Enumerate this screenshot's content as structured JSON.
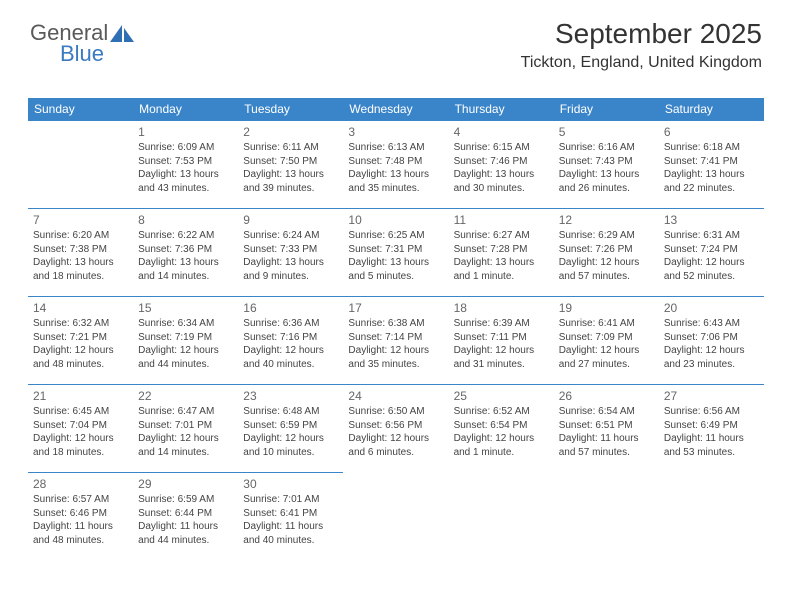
{
  "logo": {
    "text_general": "General",
    "text_blue": "Blue",
    "icon_color": "#2f6fb3"
  },
  "header": {
    "month_title": "September 2025",
    "location": "Tickton, England, United Kingdom"
  },
  "colors": {
    "header_bg": "#3a85c9",
    "header_text": "#ffffff",
    "border": "#3a85c9",
    "text": "#444444",
    "day_number": "#666666"
  },
  "day_headers": [
    "Sunday",
    "Monday",
    "Tuesday",
    "Wednesday",
    "Thursday",
    "Friday",
    "Saturday"
  ],
  "weeks": [
    [
      null,
      {
        "n": "1",
        "sr": "Sunrise: 6:09 AM",
        "ss": "Sunset: 7:53 PM",
        "dl": "Daylight: 13 hours and 43 minutes."
      },
      {
        "n": "2",
        "sr": "Sunrise: 6:11 AM",
        "ss": "Sunset: 7:50 PM",
        "dl": "Daylight: 13 hours and 39 minutes."
      },
      {
        "n": "3",
        "sr": "Sunrise: 6:13 AM",
        "ss": "Sunset: 7:48 PM",
        "dl": "Daylight: 13 hours and 35 minutes."
      },
      {
        "n": "4",
        "sr": "Sunrise: 6:15 AM",
        "ss": "Sunset: 7:46 PM",
        "dl": "Daylight: 13 hours and 30 minutes."
      },
      {
        "n": "5",
        "sr": "Sunrise: 6:16 AM",
        "ss": "Sunset: 7:43 PM",
        "dl": "Daylight: 13 hours and 26 minutes."
      },
      {
        "n": "6",
        "sr": "Sunrise: 6:18 AM",
        "ss": "Sunset: 7:41 PM",
        "dl": "Daylight: 13 hours and 22 minutes."
      }
    ],
    [
      {
        "n": "7",
        "sr": "Sunrise: 6:20 AM",
        "ss": "Sunset: 7:38 PM",
        "dl": "Daylight: 13 hours and 18 minutes."
      },
      {
        "n": "8",
        "sr": "Sunrise: 6:22 AM",
        "ss": "Sunset: 7:36 PM",
        "dl": "Daylight: 13 hours and 14 minutes."
      },
      {
        "n": "9",
        "sr": "Sunrise: 6:24 AM",
        "ss": "Sunset: 7:33 PM",
        "dl": "Daylight: 13 hours and 9 minutes."
      },
      {
        "n": "10",
        "sr": "Sunrise: 6:25 AM",
        "ss": "Sunset: 7:31 PM",
        "dl": "Daylight: 13 hours and 5 minutes."
      },
      {
        "n": "11",
        "sr": "Sunrise: 6:27 AM",
        "ss": "Sunset: 7:28 PM",
        "dl": "Daylight: 13 hours and 1 minute."
      },
      {
        "n": "12",
        "sr": "Sunrise: 6:29 AM",
        "ss": "Sunset: 7:26 PM",
        "dl": "Daylight: 12 hours and 57 minutes."
      },
      {
        "n": "13",
        "sr": "Sunrise: 6:31 AM",
        "ss": "Sunset: 7:24 PM",
        "dl": "Daylight: 12 hours and 52 minutes."
      }
    ],
    [
      {
        "n": "14",
        "sr": "Sunrise: 6:32 AM",
        "ss": "Sunset: 7:21 PM",
        "dl": "Daylight: 12 hours and 48 minutes."
      },
      {
        "n": "15",
        "sr": "Sunrise: 6:34 AM",
        "ss": "Sunset: 7:19 PM",
        "dl": "Daylight: 12 hours and 44 minutes."
      },
      {
        "n": "16",
        "sr": "Sunrise: 6:36 AM",
        "ss": "Sunset: 7:16 PM",
        "dl": "Daylight: 12 hours and 40 minutes."
      },
      {
        "n": "17",
        "sr": "Sunrise: 6:38 AM",
        "ss": "Sunset: 7:14 PM",
        "dl": "Daylight: 12 hours and 35 minutes."
      },
      {
        "n": "18",
        "sr": "Sunrise: 6:39 AM",
        "ss": "Sunset: 7:11 PM",
        "dl": "Daylight: 12 hours and 31 minutes."
      },
      {
        "n": "19",
        "sr": "Sunrise: 6:41 AM",
        "ss": "Sunset: 7:09 PM",
        "dl": "Daylight: 12 hours and 27 minutes."
      },
      {
        "n": "20",
        "sr": "Sunrise: 6:43 AM",
        "ss": "Sunset: 7:06 PM",
        "dl": "Daylight: 12 hours and 23 minutes."
      }
    ],
    [
      {
        "n": "21",
        "sr": "Sunrise: 6:45 AM",
        "ss": "Sunset: 7:04 PM",
        "dl": "Daylight: 12 hours and 18 minutes."
      },
      {
        "n": "22",
        "sr": "Sunrise: 6:47 AM",
        "ss": "Sunset: 7:01 PM",
        "dl": "Daylight: 12 hours and 14 minutes."
      },
      {
        "n": "23",
        "sr": "Sunrise: 6:48 AM",
        "ss": "Sunset: 6:59 PM",
        "dl": "Daylight: 12 hours and 10 minutes."
      },
      {
        "n": "24",
        "sr": "Sunrise: 6:50 AM",
        "ss": "Sunset: 6:56 PM",
        "dl": "Daylight: 12 hours and 6 minutes."
      },
      {
        "n": "25",
        "sr": "Sunrise: 6:52 AM",
        "ss": "Sunset: 6:54 PM",
        "dl": "Daylight: 12 hours and 1 minute."
      },
      {
        "n": "26",
        "sr": "Sunrise: 6:54 AM",
        "ss": "Sunset: 6:51 PM",
        "dl": "Daylight: 11 hours and 57 minutes."
      },
      {
        "n": "27",
        "sr": "Sunrise: 6:56 AM",
        "ss": "Sunset: 6:49 PM",
        "dl": "Daylight: 11 hours and 53 minutes."
      }
    ],
    [
      {
        "n": "28",
        "sr": "Sunrise: 6:57 AM",
        "ss": "Sunset: 6:46 PM",
        "dl": "Daylight: 11 hours and 48 minutes."
      },
      {
        "n": "29",
        "sr": "Sunrise: 6:59 AM",
        "ss": "Sunset: 6:44 PM",
        "dl": "Daylight: 11 hours and 44 minutes."
      },
      {
        "n": "30",
        "sr": "Sunrise: 7:01 AM",
        "ss": "Sunset: 6:41 PM",
        "dl": "Daylight: 11 hours and 40 minutes."
      },
      null,
      null,
      null,
      null
    ]
  ]
}
